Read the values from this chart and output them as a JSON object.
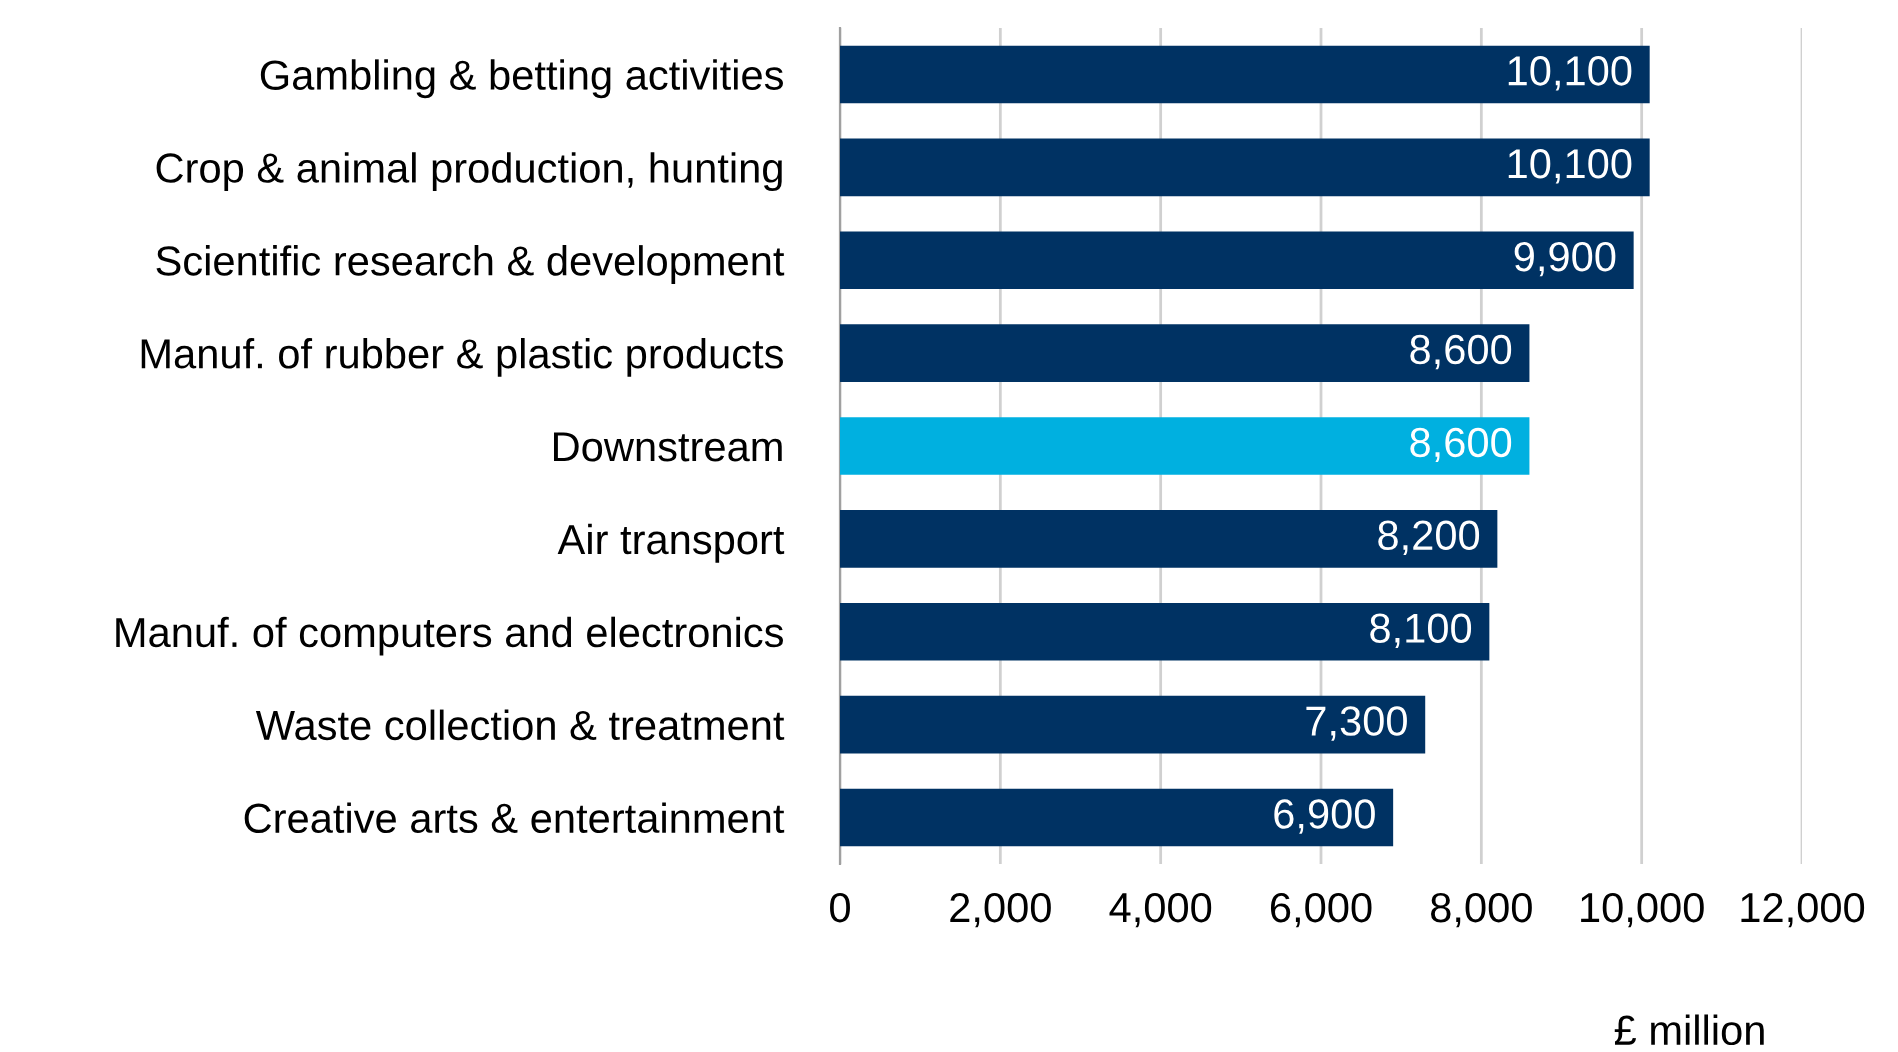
{
  "chart_data": {
    "type": "bar",
    "orientation": "horizontal",
    "categories": [
      "Gambling & betting activities",
      "Crop & animal production, hunting",
      "Scientific research & development",
      "Manuf. of rubber & plastic products",
      "Downstream",
      "Air transport",
      "Manuf. of computers and electronics",
      "Waste collection & treatment",
      "Creative arts & entertainment"
    ],
    "values": [
      10100,
      10100,
      9900,
      8600,
      8600,
      8200,
      8100,
      7300,
      6900
    ],
    "colors": [
      "#003263",
      "#003263",
      "#003263",
      "#003263",
      "#00b0e0",
      "#003263",
      "#003263",
      "#003263",
      "#003263"
    ],
    "xlim": [
      0,
      12000
    ],
    "xticks": [
      {
        "value": 0,
        "label": "0"
      },
      {
        "value": 2000,
        "label": "2,000"
      },
      {
        "value": 4000,
        "label": "4,000"
      },
      {
        "value": 6000,
        "label": "6,000"
      },
      {
        "value": 8000,
        "label": "8,000"
      },
      {
        "value": 10000,
        "label": "10,000"
      },
      {
        "value": 12000,
        "label": "12,000"
      }
    ],
    "value_labels": [
      "10,100",
      "10,100",
      "9,900",
      "8,600",
      "8,600",
      "8,200",
      "8,100",
      "7,300",
      "6,900"
    ],
    "xlabel": "£ million",
    "grid": "x"
  }
}
